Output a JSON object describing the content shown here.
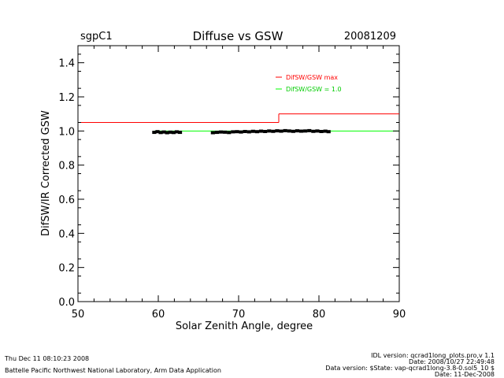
{
  "header": {
    "site": "sgpC1",
    "title": "Diffuse vs GSW",
    "date": "20081209"
  },
  "footer": {
    "left_line1": "Thu Dec 11 08:10:23 2008",
    "left_line2": "Battelle Pacific Northwest National Laboratory, Arm Data Application",
    "right_lines": [
      "IDL version: qcrad1long_plots.pro,v 1.1",
      "Date: 2008/10/27 22:49:48",
      "Data version: $State: vap-qcrad1long-3.8-0.sol5_10 $",
      "Date: 11-Dec-2008"
    ]
  },
  "colors": {
    "max_line": "#ff0000",
    "ref_line": "#00ff00",
    "data": "#000000"
  },
  "chart_data": {
    "type": "scatter",
    "xlabel": "Solar Zenith Angle, degree",
    "ylabel": "DifSW/IR Corrected GSW",
    "xlim": [
      50,
      90
    ],
    "ylim": [
      0.0,
      1.5
    ],
    "xticks": [
      50,
      60,
      70,
      80,
      90
    ],
    "xtick_labels": [
      "50",
      "60",
      "70",
      "80",
      "90"
    ],
    "yticks": [
      0.0,
      0.2,
      0.4,
      0.6,
      0.8,
      1.0,
      1.2,
      1.4
    ],
    "ytick_labels": [
      "0.0",
      "0.2",
      "0.4",
      "0.6",
      "0.8",
      "1.0",
      "1.2",
      "1.4"
    ],
    "grid": false,
    "legend": [
      {
        "label": "DifSW/GSW max",
        "color": "#ff0000"
      },
      {
        "label": "DifSW/GSW = 1.0",
        "color": "#00ff00"
      }
    ],
    "max_line": {
      "segments": [
        {
          "x": [
            50,
            75
          ],
          "y": 1.05
        },
        {
          "x": [
            75,
            90
          ],
          "y": 1.1
        }
      ]
    },
    "ref_line": {
      "x": [
        59.5,
        90
      ],
      "y": 1.0
    },
    "points": {
      "x": [
        59.5,
        59.9,
        60.3,
        60.7,
        61.1,
        61.5,
        61.9,
        62.3,
        62.7,
        66.8,
        67.3,
        67.8,
        68.3,
        68.8,
        69.3,
        69.8,
        70.3,
        70.8,
        71.3,
        71.8,
        72.3,
        72.8,
        73.3,
        73.8,
        74.3,
        74.8,
        75.3,
        75.8,
        76.3,
        76.8,
        77.3,
        77.8,
        78.3,
        78.8,
        79.3,
        79.8,
        80.3,
        80.8,
        81.2
      ],
      "y": [
        0.992,
        0.996,
        0.991,
        0.994,
        0.99,
        0.993,
        0.991,
        0.995,
        0.992,
        0.99,
        0.992,
        0.994,
        0.993,
        0.991,
        0.995,
        0.996,
        0.994,
        0.997,
        0.995,
        0.998,
        0.996,
        0.999,
        0.997,
        1.0,
        0.998,
        1.001,
        0.999,
        1.002,
        1.0,
        0.998,
        1.001,
        0.999,
        1.0,
        1.002,
        0.998,
        1.0,
        0.997,
        0.999,
        0.996
      ]
    }
  }
}
